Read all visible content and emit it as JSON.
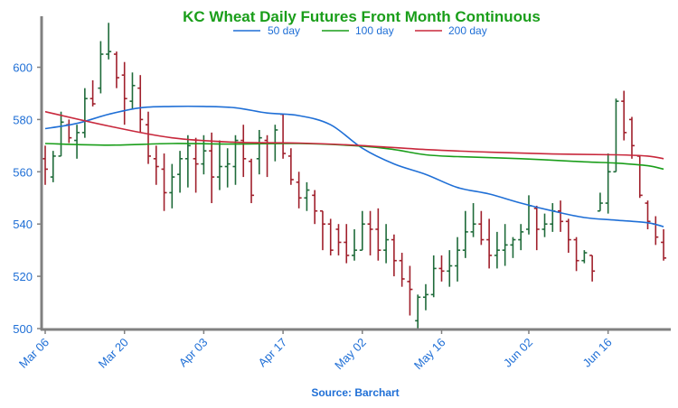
{
  "chart_data": {
    "type": "ohlc",
    "title": "KC Wheat Daily Futures Front Month Continuous",
    "source_note": "Source: Barchart",
    "xlabel": "",
    "ylabel": "",
    "ylim": [
      500,
      620
    ],
    "yticks": [
      "500",
      "520",
      "540",
      "560",
      "580",
      "600"
    ],
    "xticks": [
      {
        "label": "Mar 06",
        "day": 0
      },
      {
        "label": "Mar 20",
        "day": 10
      },
      {
        "label": "Apr 03",
        "day": 20
      },
      {
        "label": "Apr 17",
        "day": 30
      },
      {
        "label": "May 02",
        "day": 40
      },
      {
        "label": "May 16",
        "day": 50
      },
      {
        "label": "Jun 02",
        "day": 61
      },
      {
        "label": "Jun 16",
        "day": 71
      }
    ],
    "grid": false,
    "legend_position": "top-center",
    "colors": {
      "title": "#1a9e1a",
      "axis_text": "#1f6fd6",
      "up_bar": "#1f6b3a",
      "down_bar": "#a0202c",
      "axis": "#808080"
    },
    "series": [
      {
        "name": "50 day",
        "color": "#1f6fd6",
        "points": [
          [
            0,
            576.5
          ],
          [
            4,
            578.5
          ],
          [
            8,
            582
          ],
          [
            12,
            584.5
          ],
          [
            16,
            585
          ],
          [
            20,
            585
          ],
          [
            24,
            584.5
          ],
          [
            28,
            582.5
          ],
          [
            32,
            581.5
          ],
          [
            36,
            578
          ],
          [
            40,
            569
          ],
          [
            44,
            563
          ],
          [
            48,
            559
          ],
          [
            52,
            554
          ],
          [
            56,
            551.5
          ],
          [
            60,
            548
          ],
          [
            64,
            545
          ],
          [
            68,
            542.5
          ],
          [
            72,
            541.5
          ],
          [
            76,
            540.5
          ],
          [
            78,
            539
          ]
        ]
      },
      {
        "name": "100 day",
        "color": "#1a9e1a",
        "points": [
          [
            0,
            570.8
          ],
          [
            8,
            570.2
          ],
          [
            16,
            570.8
          ],
          [
            24,
            570.6
          ],
          [
            32,
            570.8
          ],
          [
            40,
            569.8
          ],
          [
            44,
            568.5
          ],
          [
            48,
            566.5
          ],
          [
            52,
            565.8
          ],
          [
            60,
            565
          ],
          [
            68,
            563.8
          ],
          [
            72,
            563.3
          ],
          [
            76,
            562.3
          ],
          [
            78,
            561
          ]
        ]
      },
      {
        "name": "200 day",
        "color": "#c8283c",
        "points": [
          [
            0,
            583
          ],
          [
            8,
            577.5
          ],
          [
            16,
            573
          ],
          [
            24,
            571.3
          ],
          [
            32,
            571
          ],
          [
            40,
            570
          ],
          [
            48,
            568.5
          ],
          [
            56,
            567.5
          ],
          [
            64,
            566.8
          ],
          [
            72,
            566.5
          ],
          [
            76,
            566
          ],
          [
            78,
            565
          ]
        ]
      }
    ],
    "ohlc": [
      [
        0,
        565,
        570,
        555,
        561
      ],
      [
        1,
        558,
        568,
        556,
        566
      ],
      [
        2,
        566,
        583,
        566,
        579
      ],
      [
        3,
        578,
        580,
        571,
        573
      ],
      [
        4,
        572,
        578,
        565,
        575
      ],
      [
        5,
        575,
        592,
        573,
        588
      ],
      [
        6,
        588,
        595,
        585,
        586
      ],
      [
        7,
        592,
        610,
        590,
        605
      ],
      [
        8,
        605,
        617,
        603,
        606
      ],
      [
        9,
        605,
        606,
        592,
        596
      ],
      [
        10,
        597,
        602,
        578,
        588
      ],
      [
        11,
        587,
        598,
        584,
        593
      ],
      [
        12,
        592,
        597,
        575,
        580
      ],
      [
        13,
        578,
        583,
        563,
        566
      ],
      [
        14,
        565,
        570,
        555,
        562
      ],
      [
        15,
        561,
        567,
        545,
        552
      ],
      [
        16,
        552,
        563,
        546,
        558
      ],
      [
        17,
        559,
        568,
        552,
        565
      ],
      [
        18,
        565,
        574,
        554,
        570
      ],
      [
        19,
        565,
        573,
        552,
        563
      ],
      [
        20,
        563,
        574,
        559,
        568
      ],
      [
        21,
        568,
        575,
        548,
        558
      ],
      [
        22,
        558,
        572,
        553,
        562
      ],
      [
        23,
        562,
        569,
        554,
        563
      ],
      [
        24,
        562,
        574,
        555,
        572
      ],
      [
        25,
        572,
        578,
        558,
        565
      ],
      [
        26,
        564,
        565,
        548,
        551
      ],
      [
        27,
        565,
        576,
        559,
        573
      ],
      [
        28,
        572,
        574,
        558,
        571
      ],
      [
        29,
        571,
        578,
        564,
        576
      ],
      [
        30,
        582,
        582,
        565,
        567
      ],
      [
        31,
        566,
        569,
        555,
        557
      ],
      [
        32,
        556,
        560,
        546,
        550
      ],
      [
        33,
        550,
        556,
        545,
        553
      ],
      [
        34,
        551,
        553,
        540,
        545
      ],
      [
        35,
        545,
        545,
        530,
        540
      ],
      [
        36,
        540,
        542,
        528,
        530
      ],
      [
        37,
        538,
        540,
        528,
        533
      ],
      [
        38,
        533,
        540,
        525,
        528
      ],
      [
        39,
        528,
        538,
        526,
        530
      ],
      [
        40,
        530,
        545,
        530,
        540
      ],
      [
        41,
        540,
        545,
        528,
        538
      ],
      [
        42,
        538,
        546,
        526,
        530
      ],
      [
        43,
        530,
        540,
        525,
        534
      ],
      [
        44,
        534,
        536,
        520,
        526
      ],
      [
        45,
        526,
        529,
        516,
        519
      ],
      [
        46,
        518,
        524,
        505,
        515
      ],
      [
        47,
        503,
        513,
        500,
        512
      ],
      [
        48,
        512,
        517,
        507,
        513
      ],
      [
        49,
        513,
        528,
        512,
        523
      ],
      [
        50,
        523,
        528,
        518,
        522
      ],
      [
        51,
        522,
        530,
        516,
        524
      ],
      [
        52,
        524,
        535,
        518,
        530
      ],
      [
        53,
        530,
        545,
        527,
        537
      ],
      [
        54,
        537,
        548,
        535,
        540
      ],
      [
        55,
        540,
        545,
        532,
        534
      ],
      [
        56,
        534,
        542,
        523,
        528
      ],
      [
        57,
        528,
        537,
        523,
        530
      ],
      [
        58,
        530,
        540,
        524,
        532
      ],
      [
        59,
        532,
        535,
        527,
        534
      ],
      [
        60,
        534,
        540,
        530,
        537
      ],
      [
        61,
        538,
        551,
        536,
        547
      ],
      [
        62,
        546,
        547,
        530,
        538
      ],
      [
        63,
        538,
        544,
        535,
        540
      ],
      [
        64,
        540,
        548,
        537,
        545
      ],
      [
        65,
        545,
        549,
        537,
        541
      ],
      [
        66,
        541,
        542,
        529,
        534
      ],
      [
        67,
        534,
        535,
        522,
        526
      ],
      [
        68,
        526,
        530,
        525,
        529
      ],
      [
        69,
        528,
        528,
        518,
        522
      ],
      [
        70,
        545,
        552,
        545,
        548
      ],
      [
        71,
        548,
        567,
        544,
        560
      ],
      [
        72,
        560,
        588,
        560,
        587
      ],
      [
        73,
        587,
        591,
        572,
        575
      ],
      [
        74,
        580,
        581,
        565,
        570
      ],
      [
        75,
        566,
        566,
        550,
        551
      ],
      [
        76,
        548,
        549,
        538,
        541
      ],
      [
        77,
        540,
        543,
        532,
        535
      ],
      [
        78,
        533,
        538,
        526,
        527
      ]
    ]
  }
}
